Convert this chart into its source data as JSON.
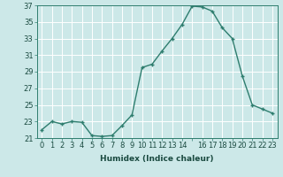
{
  "x": [
    0,
    1,
    2,
    3,
    4,
    5,
    6,
    7,
    8,
    9,
    10,
    11,
    12,
    13,
    14,
    15,
    16,
    17,
    18,
    19,
    20,
    21,
    22,
    23
  ],
  "y": [
    22.0,
    23.0,
    22.7,
    23.0,
    22.9,
    21.3,
    21.2,
    21.3,
    22.5,
    23.8,
    29.5,
    29.9,
    31.5,
    33.0,
    34.7,
    36.9,
    36.8,
    36.3,
    34.3,
    33.0,
    28.5,
    25.0,
    24.5,
    24.0
  ],
  "xlabel": "Humidex (Indice chaleur)",
  "ylabel": "",
  "xlim": [
    -0.5,
    23.5
  ],
  "ylim": [
    21,
    37
  ],
  "ytick_vals": [
    21,
    23,
    25,
    27,
    29,
    31,
    33,
    35,
    37
  ],
  "ytick_labels": [
    "21",
    "23",
    "25",
    "27",
    "29",
    "31",
    "33",
    "35",
    "37"
  ],
  "xtick_labels": [
    "0",
    "1",
    "2",
    "3",
    "4",
    "5",
    "6",
    "7",
    "8",
    "9",
    "10",
    "11",
    "12",
    "13",
    "14",
    "",
    "16",
    "17",
    "18",
    "19",
    "20",
    "21",
    "22",
    "23"
  ],
  "line_color": "#2e7d6e",
  "marker_color": "#2e7d6e",
  "bg_plot": "#cce8e8",
  "bg_fig": "#cce8e8",
  "grid_color": "#ffffff",
  "label_fontsize": 6.5,
  "tick_fontsize": 6.0
}
